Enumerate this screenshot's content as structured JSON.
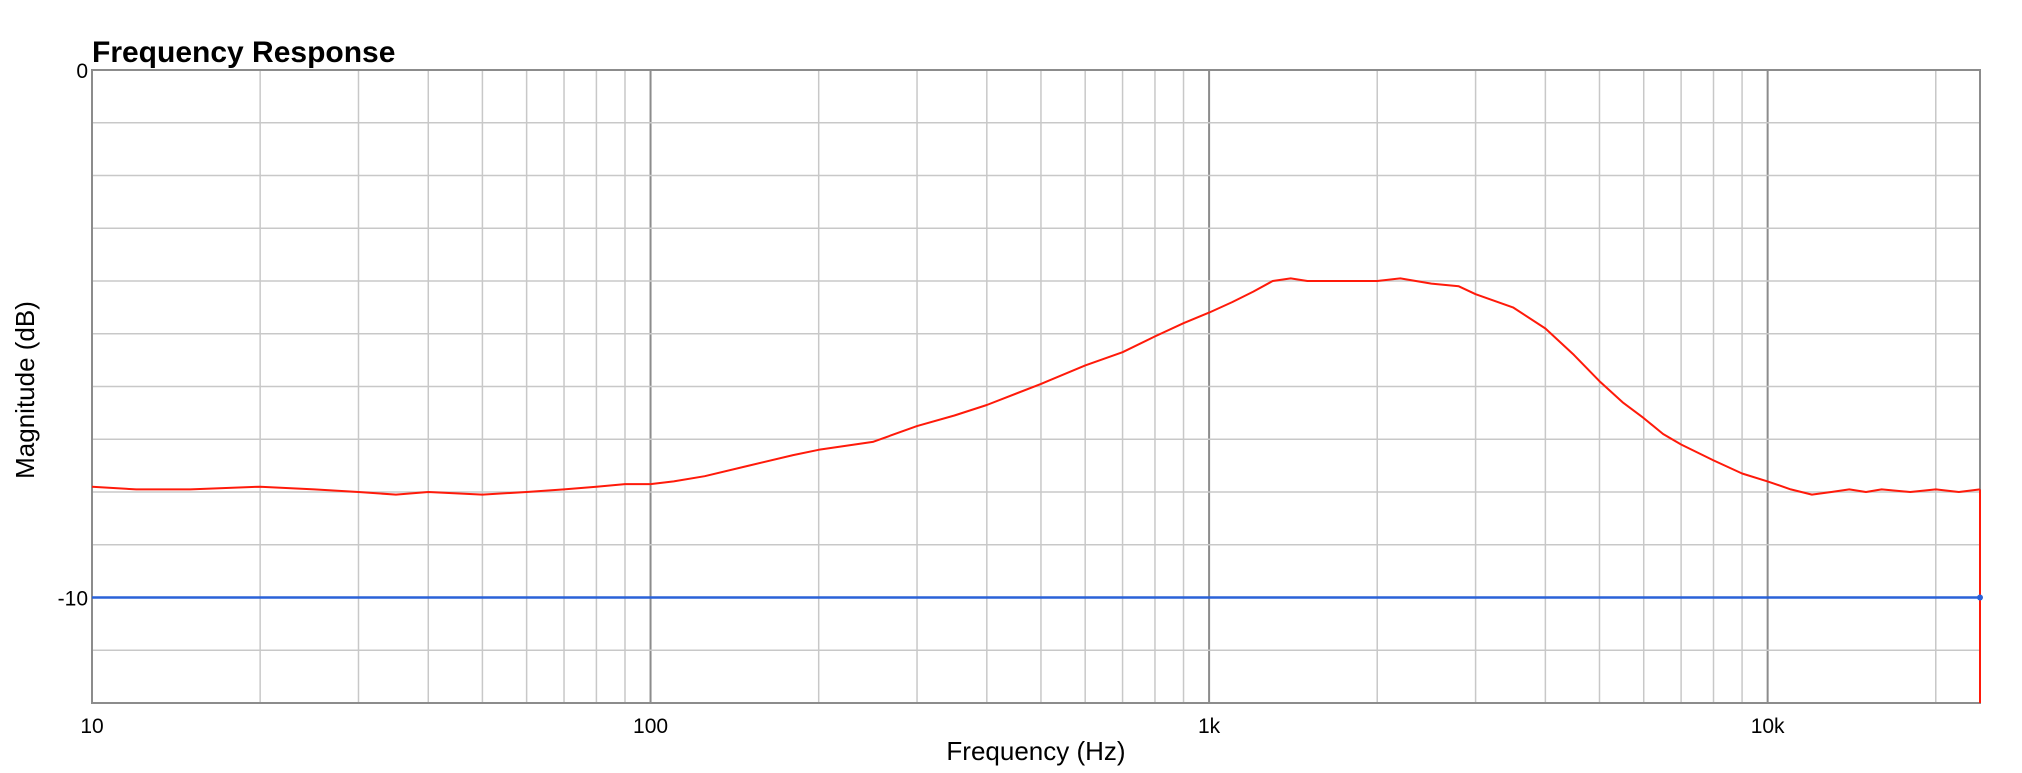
{
  "chart_data": {
    "type": "line",
    "title": "Frequency Response",
    "xlabel": "Frequency (Hz)",
    "ylabel": "Magnitude (dB)",
    "x_scale": "log",
    "xlim": [
      10,
      24000
    ],
    "ylim": [
      -12,
      0
    ],
    "grid": true,
    "x_ticks": [
      {
        "value": 10,
        "label": "10"
      },
      {
        "value": 100,
        "label": "100"
      },
      {
        "value": 1000,
        "label": "1k"
      },
      {
        "value": 10000,
        "label": "10k"
      }
    ],
    "y_ticks": [
      {
        "value": 0,
        "label": "0"
      },
      {
        "value": -10,
        "label": "-10"
      }
    ],
    "colors": {
      "response": "#ff1a0a",
      "reference": "#2a62d8"
    },
    "series": [
      {
        "color": "#ff1a0a",
        "x": [
          10,
          12,
          15,
          20,
          25,
          30,
          35,
          40,
          50,
          60,
          70,
          80,
          90,
          100,
          110,
          125,
          150,
          180,
          200,
          250,
          300,
          350,
          400,
          500,
          600,
          700,
          800,
          900,
          1000,
          1100,
          1200,
          1300,
          1400,
          1500,
          1700,
          2000,
          2200,
          2500,
          2800,
          3000,
          3500,
          4000,
          4500,
          5000,
          5500,
          6000,
          6500,
          7000,
          8000,
          9000,
          10000,
          11000,
          12000,
          13000,
          14000,
          15000,
          16000,
          18000,
          20000,
          22000,
          24000
        ],
        "y": [
          -7.9,
          -7.95,
          -7.95,
          -7.9,
          -7.95,
          -8.0,
          -8.05,
          -8.0,
          -8.05,
          -8.0,
          -7.95,
          -7.9,
          -7.85,
          -7.85,
          -7.8,
          -7.7,
          -7.5,
          -7.3,
          -7.2,
          -7.05,
          -6.75,
          -6.55,
          -6.35,
          -5.95,
          -5.6,
          -5.35,
          -5.05,
          -4.8,
          -4.6,
          -4.4,
          -4.2,
          -4.0,
          -3.95,
          -4.0,
          -4.0,
          -4.0,
          -3.95,
          -4.05,
          -4.1,
          -4.25,
          -4.5,
          -4.9,
          -5.4,
          -5.9,
          -6.3,
          -6.6,
          -6.9,
          -7.1,
          -7.4,
          -7.65,
          -7.8,
          -7.95,
          -8.05,
          -8.0,
          -7.95,
          -8.0,
          -7.95,
          -8.0,
          -7.95,
          -8.0,
          -7.95
        ]
      },
      {
        "color": "#2a62d8",
        "x": [
          10,
          24000
        ],
        "y": [
          -10,
          -10
        ]
      }
    ]
  }
}
